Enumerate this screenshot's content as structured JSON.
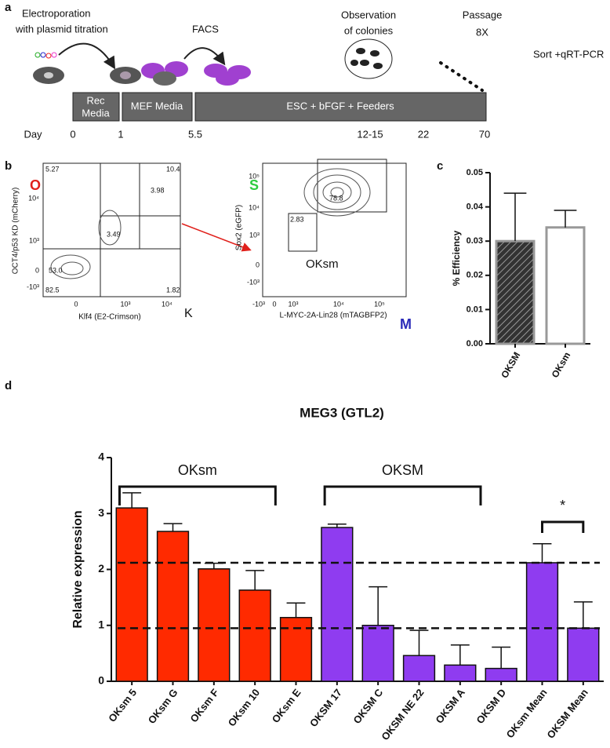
{
  "panel_a": {
    "label": "a",
    "steps": [
      "Electroporation",
      "with plasmid titration",
      "FACS",
      "Observation",
      "of colonies",
      "Passage",
      "8X",
      "Sort +qRT-PCR"
    ],
    "media": [
      "Rec",
      "Media",
      "MEF Media",
      "ESC + bFGF + Feeders"
    ],
    "days": [
      "Day",
      "0",
      "1",
      "5.5",
      "12-15",
      "22",
      "70"
    ]
  },
  "panel_b": {
    "label": "b",
    "left": {
      "corner_y": "O",
      "corner_x": "K",
      "gates": [
        "5.27",
        "10.4",
        "3.98",
        "3.49",
        "53.0",
        "82.5",
        "1.82"
      ],
      "ylabel": "OCT4/p53 KD (mCherry)",
      "xlabel": "Klf4 (E2-Crimson)",
      "yticks": [
        "10⁴",
        "10³",
        "0",
        "-10³"
      ],
      "xticks": [
        "0",
        "10³",
        "10⁴"
      ]
    },
    "right": {
      "corner_y": "S",
      "corner_x": "M",
      "gates": [
        "78.8",
        "2.83"
      ],
      "gate_name": "OKsm",
      "ylabel": "Sox2 (eGFP)",
      "xlabel": "L-MYC-2A-Lin28 (mTAGBFP2)",
      "yticks": [
        "10⁵",
        "10⁴",
        "10³",
        "0",
        "-10³"
      ],
      "xticks": [
        "-10³",
        "0",
        "10³",
        "10⁴",
        "10⁵"
      ]
    }
  },
  "chart_data": [
    {
      "type": "bar",
      "label": "c",
      "ylabel": "% Efficiency",
      "categories": [
        "OKSM",
        "OKsm"
      ],
      "values": [
        0.03,
        0.034
      ],
      "errors": [
        0.014,
        0.005
      ],
      "colors": [
        "#333333",
        "#ffffff"
      ],
      "edgecolors": [
        "#999999",
        "#999999"
      ],
      "hatch": [
        true,
        false
      ],
      "ylim": [
        0,
        0.05
      ],
      "yticks": [
        {
          "value": 0,
          "label": "0.00"
        },
        {
          "value": 0.01,
          "label": "0.01"
        },
        {
          "value": 0.02,
          "label": "0.02"
        },
        {
          "value": 0.03,
          "label": "0.03"
        },
        {
          "value": 0.04,
          "label": "0.04"
        },
        {
          "value": 0.05,
          "label": "0.05"
        }
      ]
    },
    {
      "type": "bar",
      "label": "d",
      "title": "MEG3 (GTL2)",
      "ylabel": "Relative expression",
      "categories": [
        "OKsm 5",
        "OKsm G",
        "OKsm F",
        "OKsm 10",
        "OKsm E",
        "OKSM 17",
        "OKSM C",
        "OKSM NE 22",
        "OKSM A",
        "OKSM D",
        "OKsm Mean",
        "OKSM Mean"
      ],
      "values": [
        3.1,
        2.68,
        2.01,
        1.63,
        1.14,
        2.75,
        1.0,
        0.46,
        0.29,
        0.23,
        2.12,
        0.95
      ],
      "errors": [
        0.27,
        0.14,
        0.1,
        0.35,
        0.26,
        0.06,
        0.69,
        0.45,
        0.36,
        0.38,
        0.34,
        0.47
      ],
      "colors": [
        "#ff2a00",
        "#ff2a00",
        "#ff2a00",
        "#ff2a00",
        "#ff2a00",
        "#8f3cf0",
        "#8f3cf0",
        "#8f3cf0",
        "#8f3cf0",
        "#8f3cf0",
        "#8f3cf0",
        "#8f3cf0"
      ],
      "ylim": [
        0,
        4
      ],
      "yticks": [
        0,
        1,
        2,
        3,
        4
      ],
      "reference_lines": [
        2.12,
        0.95
      ],
      "group_labels": [
        "OKsm",
        "OKSM"
      ],
      "significance": "*"
    }
  ]
}
